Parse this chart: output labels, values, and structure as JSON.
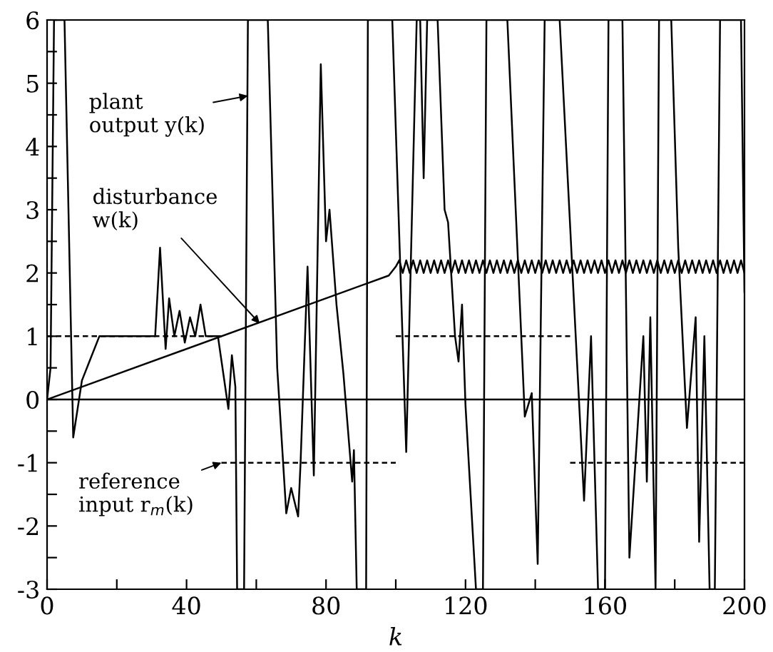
{
  "chart_data": {
    "type": "line",
    "xlabel": "k",
    "xlim": [
      0,
      200
    ],
    "xticks": [
      0,
      {
        "value": 20,
        "label": null
      },
      40,
      {
        "value": 60,
        "label": null
      },
      80,
      {
        "value": 100,
        "label": null
      },
      120,
      {
        "value": 140,
        "label": null
      },
      160,
      {
        "value": 180,
        "label": null
      },
      200
    ],
    "ylim": [
      -3,
      6
    ],
    "yticks": [
      -3,
      {
        "value": -2.5,
        "label": null
      },
      -2,
      {
        "value": -1.5,
        "label": null
      },
      -1,
      {
        "value": -0.5,
        "label": null
      },
      0,
      {
        "value": 0.5,
        "label": null
      },
      1,
      {
        "value": 1.5,
        "label": null
      },
      2,
      {
        "value": 2.5,
        "label": null
      },
      3,
      {
        "value": 3.5,
        "label": null
      },
      4,
      {
        "value": 4.5,
        "label": null
      },
      5,
      {
        "value": 5.5,
        "label": null
      },
      6
    ],
    "grid": false,
    "legend": false,
    "ref_lines": [
      {
        "axis": "y",
        "value": 0,
        "color": "#000000",
        "line_style": "solid"
      }
    ],
    "series": [
      {
        "color": "#000000",
        "line_style": "solid",
        "x": [
          0,
          1,
          2,
          5,
          7.5,
          10,
          15,
          20,
          31,
          32.4,
          34,
          35,
          36.5,
          38,
          39.5,
          41,
          42.5,
          44,
          45.5,
          47,
          49,
          52,
          53,
          54,
          54.5,
          56.5,
          57.6,
          63.3,
          66,
          68.6,
          70,
          72,
          72.7,
          74.7,
          76.5,
          78.5,
          80,
          81,
          83,
          85,
          87.5,
          88,
          88.8,
          91.5,
          92,
          99,
          103,
          106,
          107,
          108,
          109,
          112,
          114,
          115,
          117,
          118,
          119,
          120,
          123,
          125,
          126,
          132,
          137,
          139,
          140.7,
          142.7,
          147,
          154,
          156,
          157,
          158,
          160,
          161,
          165,
          167,
          171,
          172,
          173,
          174.5,
          175.5,
          179,
          181,
          183.5,
          186,
          187,
          188.5,
          190,
          191.5,
          193,
          199,
          200
        ],
        "values": [
          0,
          0.5,
          6,
          6,
          -0.6,
          0.3,
          1.0,
          1.0,
          1.0,
          2.4,
          0.8,
          1.6,
          1.0,
          1.4,
          0.9,
          1.3,
          1.0,
          1.5,
          1.0,
          1.0,
          1.0,
          -0.15,
          0.7,
          0.2,
          -3,
          -3,
          6,
          6,
          0.5,
          -1.8,
          -1.4,
          -1.85,
          -1.0,
          2.1,
          -1.2,
          5.3,
          2.5,
          3.0,
          1.5,
          0.4,
          -1.3,
          -0.8,
          -3,
          -3,
          6,
          6,
          -0.83,
          6,
          6,
          3.5,
          6,
          6,
          3.0,
          2.8,
          1.0,
          0.6,
          1.5,
          -0.1,
          -3,
          -3,
          6,
          6,
          -0.27,
          0.1,
          -2.6,
          6,
          6,
          -1.6,
          1.0,
          -1.0,
          -3,
          -3,
          6,
          6,
          -2.5,
          1.0,
          -1.3,
          1.3,
          -3,
          6,
          6,
          2.4,
          -0.45,
          1.3,
          -2.25,
          1.0,
          -3,
          -3,
          6,
          6,
          1.7
        ]
      },
      {
        "color": "#000000",
        "line_style": "solid",
        "x": [
          0,
          98,
          100,
          101,
          102,
          103,
          104,
          105,
          106,
          107,
          108,
          109,
          110,
          111,
          112,
          113,
          114,
          115,
          116,
          117,
          118,
          119,
          120,
          121,
          122,
          123,
          124,
          125,
          126,
          127,
          128,
          129,
          130,
          131,
          132,
          133,
          134,
          135,
          136,
          137,
          138,
          139,
          140,
          141,
          142,
          143,
          144,
          145,
          146,
          147,
          148,
          149,
          150,
          151,
          152,
          153,
          154,
          155,
          156,
          157,
          158,
          159,
          160,
          161,
          162,
          163,
          164,
          165,
          166,
          167,
          168,
          169,
          170,
          171,
          172,
          173,
          174,
          175,
          176,
          177,
          178,
          179,
          180,
          181,
          182,
          183,
          184,
          185,
          186,
          187,
          188,
          189,
          190,
          191,
          192,
          193,
          194,
          195,
          196,
          197,
          198,
          199,
          200
        ],
        "values": [
          0,
          1.96,
          2.1,
          2.2,
          2.0,
          2.2,
          2.0,
          2.2,
          2.0,
          2.2,
          2.0,
          2.2,
          2.0,
          2.2,
          2.0,
          2.2,
          2.0,
          2.2,
          2.0,
          2.2,
          2.0,
          2.2,
          2.0,
          2.2,
          2.0,
          2.2,
          2.0,
          2.2,
          2.0,
          2.2,
          2.0,
          2.2,
          2.0,
          2.2,
          2.0,
          2.2,
          2.0,
          2.2,
          2.0,
          2.2,
          2.0,
          2.2,
          2.0,
          2.2,
          2.0,
          2.2,
          2.0,
          2.2,
          2.0,
          2.2,
          2.0,
          2.2,
          2.0,
          2.2,
          2.0,
          2.2,
          2.0,
          2.2,
          2.0,
          2.2,
          2.0,
          2.2,
          2.0,
          2.2,
          2.0,
          2.2,
          2.0,
          2.2,
          2.0,
          2.2,
          2.0,
          2.2,
          2.0,
          2.2,
          2.0,
          2.2,
          2.0,
          2.2,
          2.0,
          2.2,
          2.0,
          2.2,
          2.0,
          2.2,
          2.0,
          2.2,
          2.0,
          2.2,
          2.0,
          2.2,
          2.0,
          2.2,
          2.0,
          2.2,
          2.0,
          2.2,
          2.0,
          2.2,
          2.0,
          2.2,
          2.0,
          2.2,
          2.0
        ]
      },
      {
        "color": "#000000",
        "line_style": "dashed",
        "x": [
          0,
          50
        ],
        "values": [
          1,
          1
        ]
      },
      {
        "color": "#000000",
        "line_style": "dashed",
        "x": [
          50,
          100
        ],
        "values": [
          -1,
          -1
        ]
      },
      {
        "color": "#000000",
        "line_style": "dashed",
        "x": [
          100,
          150
        ],
        "values": [
          1,
          1
        ]
      },
      {
        "color": "#000000",
        "line_style": "dashed",
        "x": [
          150,
          200
        ],
        "values": [
          -1,
          -1
        ]
      }
    ],
    "annotations": [
      {
        "text": "plant\noutput y(k)",
        "x": 57.6,
        "y": 4.8
      },
      {
        "text": "disturbance\nw(k)",
        "x": 61,
        "y": 1.2
      },
      {
        "text": "reference\ninput r$_{m}$(k)",
        "x": 50,
        "y": -1
      }
    ]
  }
}
